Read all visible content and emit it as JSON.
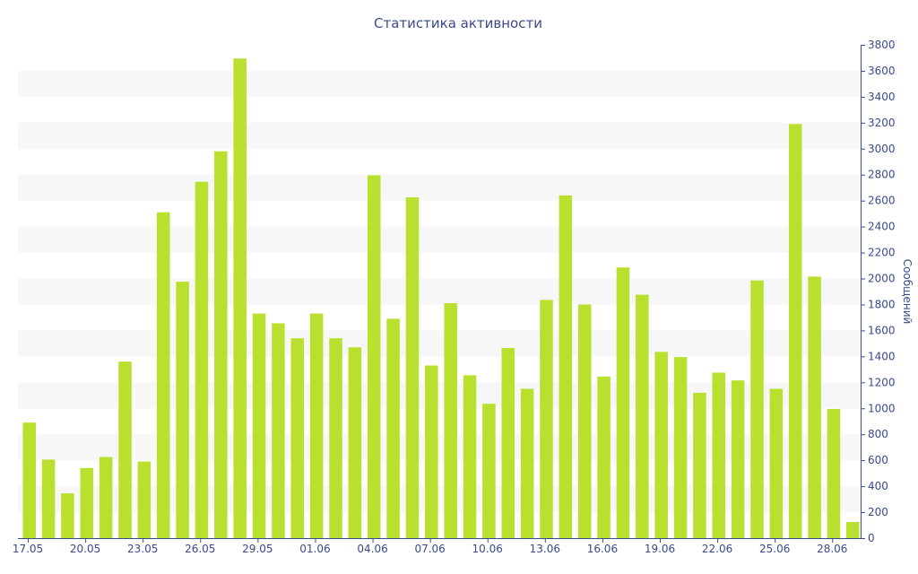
{
  "chart_data": {
    "type": "bar",
    "title": "Статистика активности",
    "xlabel": "",
    "ylabel": "Сообщений",
    "ylim": [
      0,
      3800
    ],
    "y_ticks": [
      0,
      200,
      400,
      600,
      800,
      1000,
      1200,
      1400,
      1600,
      1800,
      2000,
      2200,
      2400,
      2600,
      2800,
      3000,
      3200,
      3400,
      3600,
      3800
    ],
    "y_axis_position": "right",
    "grid": "alternating horizontal bands",
    "legend": "none",
    "bar_color": "#b9e02f",
    "text_color": "#3b4a8a",
    "categories": [
      "17.05",
      "18.05",
      "19.05",
      "20.05",
      "21.05",
      "22.05",
      "23.05",
      "24.05",
      "25.05",
      "26.05",
      "27.05",
      "28.05",
      "29.05",
      "30.05",
      "31.05",
      "01.06",
      "02.06",
      "03.06",
      "04.06",
      "05.06",
      "06.06",
      "07.06",
      "08.06",
      "09.06",
      "10.06",
      "11.06",
      "12.06",
      "13.06",
      "14.06",
      "15.06",
      "16.06",
      "17.06",
      "18.06",
      "19.06",
      "20.06",
      "21.06",
      "22.06",
      "23.06",
      "24.06",
      "25.06",
      "26.06",
      "27.06",
      "28.06",
      "29.06"
    ],
    "x_tick_labels": [
      "17.05",
      "20.05",
      "23.05",
      "26.05",
      "29.05",
      "01.06",
      "04.06",
      "07.06",
      "10.06",
      "13.06",
      "16.06",
      "19.06",
      "22.06",
      "25.06",
      "28.06"
    ],
    "values": [
      890,
      605,
      345,
      540,
      625,
      1360,
      590,
      2510,
      1975,
      2745,
      2980,
      3695,
      1730,
      1655,
      1540,
      1730,
      1540,
      1470,
      2795,
      1690,
      2625,
      1330,
      1810,
      1255,
      1035,
      1465,
      1150,
      1835,
      2640,
      1800,
      1245,
      2085,
      1875,
      1435,
      1395,
      1120,
      1275,
      1215,
      1985,
      1150,
      3190,
      2015,
      995,
      125
    ]
  }
}
